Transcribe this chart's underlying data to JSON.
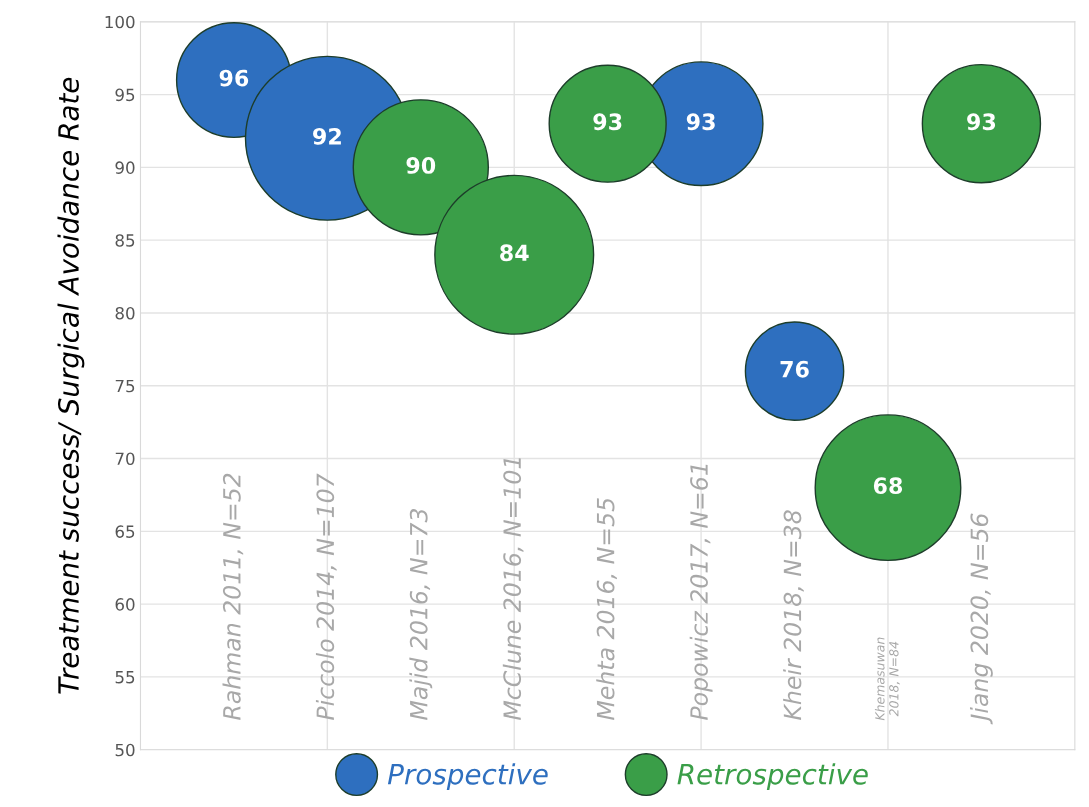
{
  "chart_data": {
    "type": "bubble",
    "ylabel": "Treatment success/ Surgical Avoidance Rate",
    "categories": [
      "Rahman 2011, N=52",
      "Piccolo 2014, N=107",
      "Majid 2016, N=73",
      "McClune 2016, N=101",
      "Mehta 2016, N=55",
      "Popowicz 2017, N=61",
      "Kheir 2018, N=38",
      "Khemasuwan\n2018, N=84",
      "Jiang 2020, N=56"
    ],
    "series": [
      {
        "name": "Prospective",
        "color": "#2e6fbf",
        "values": [
          96,
          92,
          null,
          null,
          null,
          93,
          76,
          null,
          null
        ],
        "sizes": [
          0.49,
          1,
          null,
          null,
          null,
          0.57,
          0.36,
          null,
          null
        ]
      },
      {
        "name": "Retrospective",
        "color": "#3a9e48",
        "values": [
          null,
          null,
          90,
          84,
          93,
          null,
          null,
          68,
          93
        ],
        "sizes": [
          null,
          null,
          0.68,
          0.94,
          0.51,
          null,
          null,
          0.79,
          0.52
        ]
      }
    ],
    "ylim": [
      50,
      100
    ],
    "yticks": [
      50,
      55,
      60,
      65,
      70,
      75,
      80,
      85,
      90,
      95,
      100
    ],
    "grid": true,
    "legend": "bottom",
    "data_labels": true
  }
}
